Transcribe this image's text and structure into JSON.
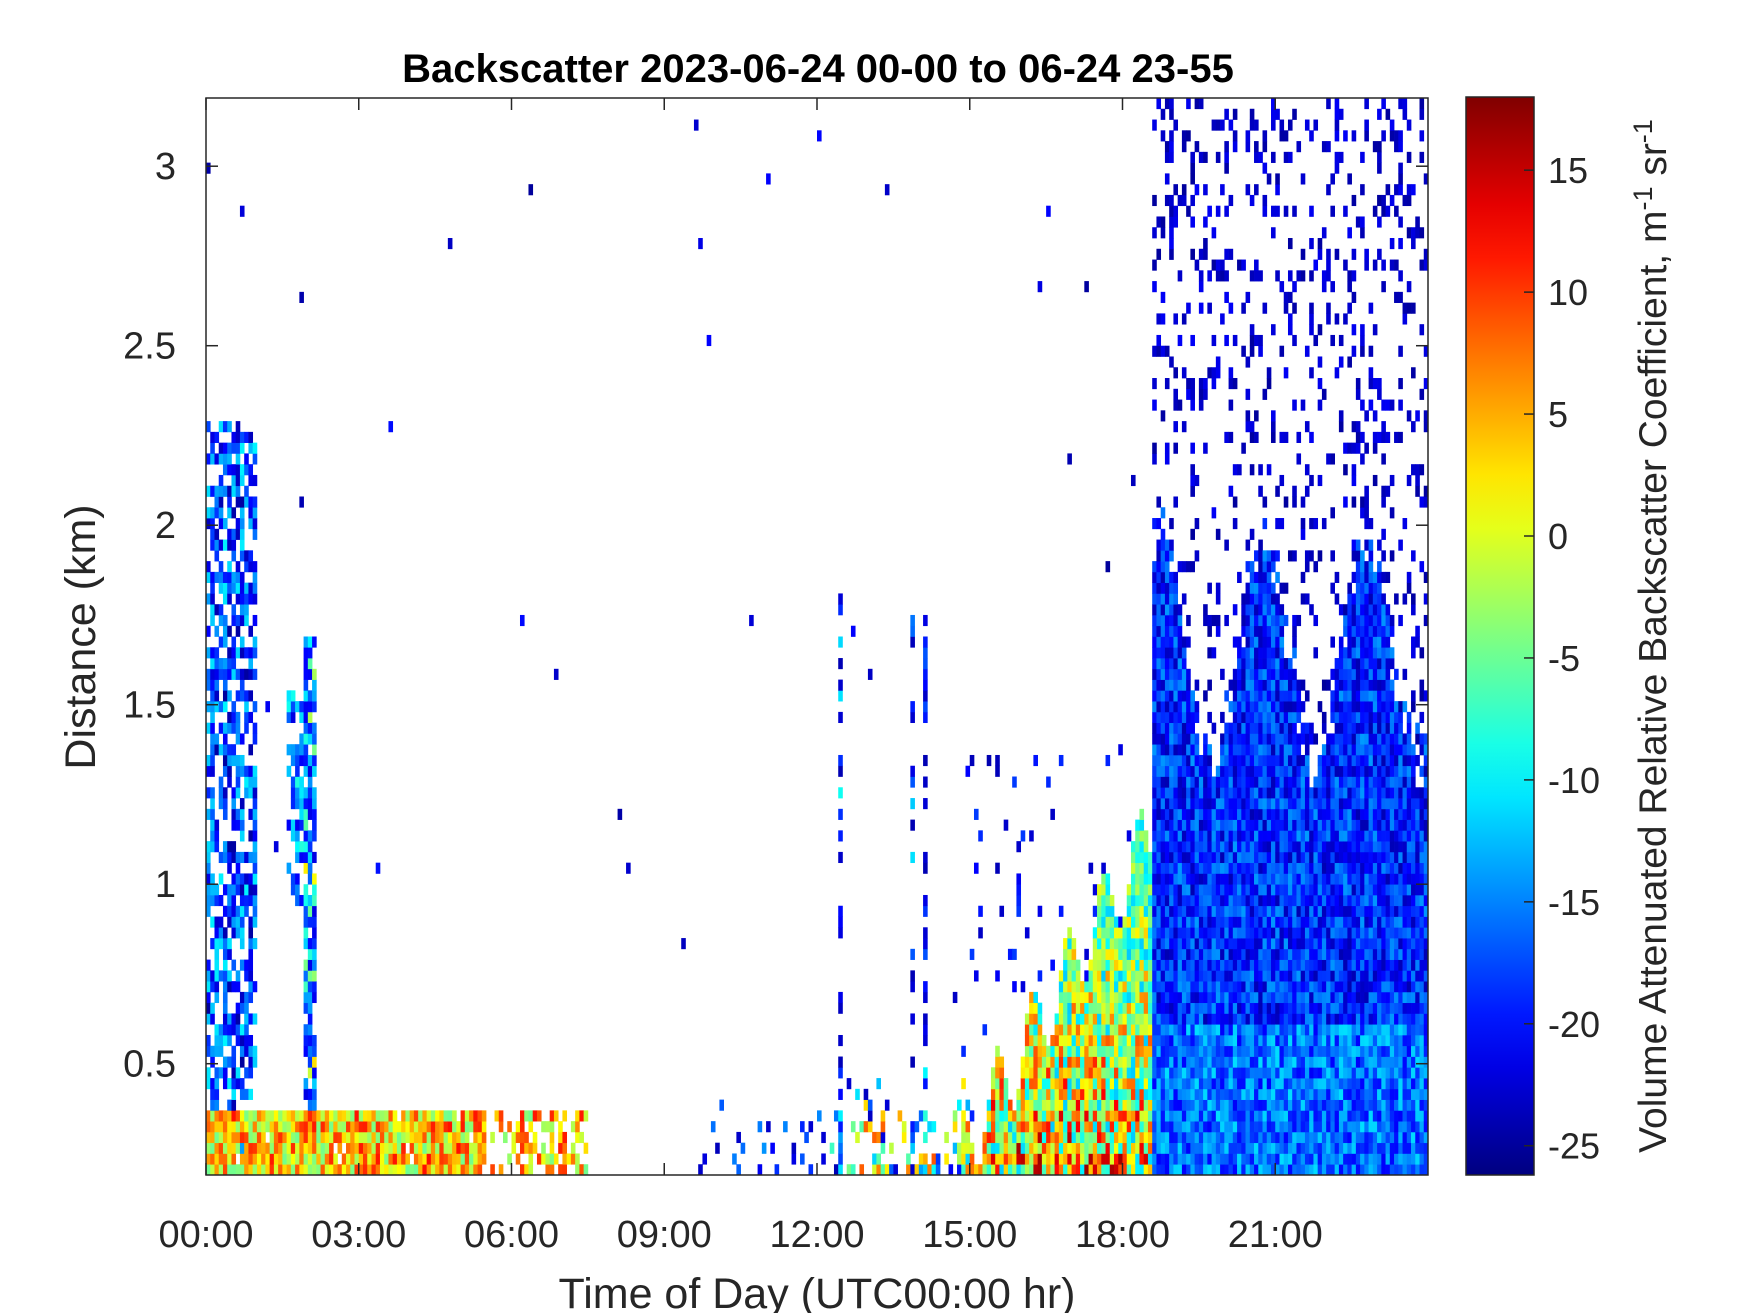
{
  "chart_data": {
    "type": "heatmap",
    "title": "Backscatter 2023-06-24 00-00 to 06-24 23-55",
    "xlabel": "Time of Day (UTC00:00 hr)",
    "ylabel": "Distance (km)",
    "colorbar_label": "Volume Attenuated Relative Backscatter Coefficient, m",
    "colorbar_units": {
      "m_exp": "-1",
      "sr": " sr",
      "sr_exp": "-1"
    },
    "x_unit": "hours since 00:00 UTC",
    "xlim": [
      0,
      24
    ],
    "ylim": [
      0.19,
      3.19
    ],
    "clim": [
      -26.2,
      18
    ],
    "colormap": "jet",
    "x_ticks": [
      {
        "value": 0,
        "label": "00:00"
      },
      {
        "value": 3,
        "label": "03:00"
      },
      {
        "value": 6,
        "label": "06:00"
      },
      {
        "value": 9,
        "label": "09:00"
      },
      {
        "value": 12,
        "label": "12:00"
      },
      {
        "value": 15,
        "label": "15:00"
      },
      {
        "value": 18,
        "label": "18:00"
      },
      {
        "value": 21,
        "label": "21:00"
      }
    ],
    "y_ticks": [
      {
        "value": 0.5,
        "label": "0.5"
      },
      {
        "value": 1,
        "label": "1"
      },
      {
        "value": 1.5,
        "label": "1.5"
      },
      {
        "value": 2,
        "label": "2"
      },
      {
        "value": 2.5,
        "label": "2.5"
      },
      {
        "value": 3,
        "label": "3"
      }
    ],
    "colorbar_ticks": [
      {
        "value": -25,
        "label": "-25"
      },
      {
        "value": -20,
        "label": "-20"
      },
      {
        "value": -15,
        "label": "-15"
      },
      {
        "value": -10,
        "label": "-10"
      },
      {
        "value": -5,
        "label": "-5"
      },
      {
        "value": 0,
        "label": "0"
      },
      {
        "value": 5,
        "label": "5"
      },
      {
        "value": 10,
        "label": "10"
      },
      {
        "value": 15,
        "label": "15"
      }
    ],
    "regions": [
      {
        "name": "night aerosol layer",
        "time": [
          0,
          7.5
        ],
        "height": [
          0.19,
          0.37
        ],
        "value_range": [
          -5,
          12
        ]
      },
      {
        "name": "early cloud column",
        "time": [
          0,
          1.0
        ],
        "height": [
          0.19,
          2.3
        ],
        "value_range": [
          -25,
          -10
        ]
      },
      {
        "name": "column near 02:00",
        "time": [
          1.6,
          2.3
        ],
        "height": [
          0.19,
          1.7
        ],
        "value_range": [
          -22,
          8
        ]
      },
      {
        "name": "afternoon convective layer",
        "time": [
          14.8,
          18.6
        ],
        "height": [
          0.19,
          1.4
        ],
        "value_range": [
          -15,
          15
        ]
      },
      {
        "name": "evening cloud field",
        "time": [
          18.6,
          24
        ],
        "height": [
          0.19,
          3.19
        ],
        "value_range": [
          -25,
          -12
        ]
      }
    ]
  }
}
